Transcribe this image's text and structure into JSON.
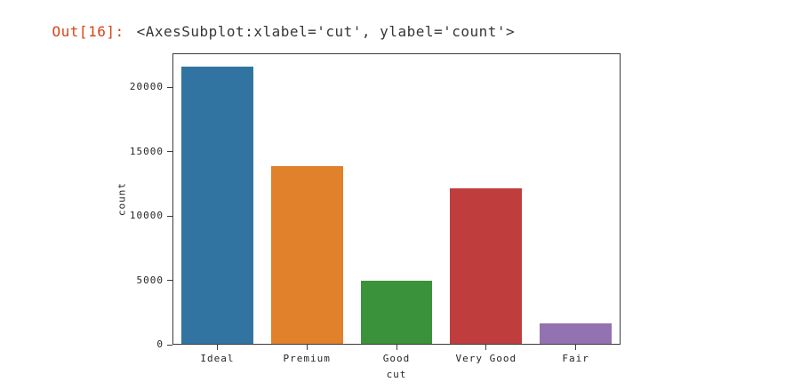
{
  "output": {
    "prompt": "Out[16]:",
    "repr_text": "<AxesSubplot:xlabel='cut', ylabel='count'>"
  },
  "colors": {
    "prompt_color": "#d84315",
    "repr_text_color": "#363636",
    "axis_color": "#262626",
    "spine_color": "#3c3c3c"
  },
  "chart_data": {
    "type": "bar",
    "title": "",
    "xlabel": "cut",
    "ylabel": "count",
    "categories": [
      "Ideal",
      "Premium",
      "Good",
      "Very Good",
      "Fair"
    ],
    "values": [
      21551,
      13791,
      4906,
      12082,
      1610
    ],
    "bar_colors": [
      "#3274a1",
      "#e1812c",
      "#3a923a",
      "#c03d3e",
      "#9372b2"
    ],
    "yticks": [
      0,
      5000,
      10000,
      15000,
      20000
    ],
    "ylim": [
      0,
      22628
    ],
    "bar_width_fraction": 0.8,
    "grid": false,
    "legend": "none"
  }
}
